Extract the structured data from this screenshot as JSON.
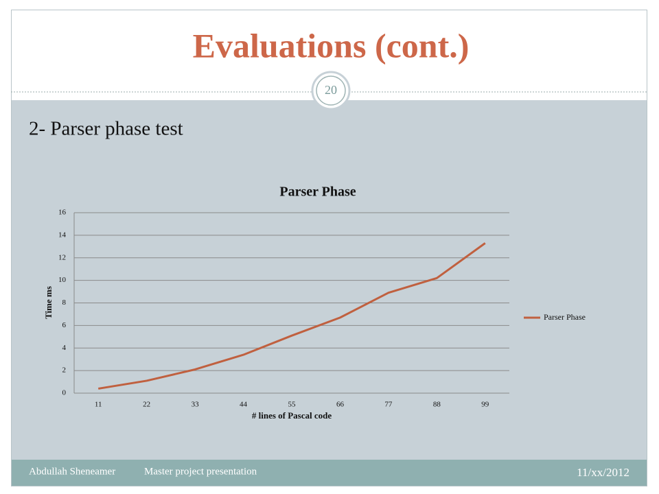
{
  "slide": {
    "title": "Evaluations (cont.)",
    "page_number": "20",
    "subtitle": "2- Parser phase test",
    "footer_author": "Abdullah Sheneamer",
    "footer_text": "Master project presentation",
    "footer_date": "11/xx/2012"
  },
  "chart_data": {
    "type": "line",
    "title": "Parser Phase",
    "x_label": "# lines of Pascal code",
    "y_label": "Time ms",
    "categories": [
      "11",
      "22",
      "33",
      "44",
      "55",
      "66",
      "77",
      "88",
      "99"
    ],
    "series": [
      {
        "name": "Parser Phase",
        "color": "#c0603f",
        "values": [
          0.4,
          1.1,
          2.1,
          3.4,
          5.1,
          6.7,
          8.9,
          10.2,
          13.3
        ]
      }
    ],
    "ylim": [
      0,
      16
    ],
    "yticks": [
      0,
      2,
      4,
      6,
      8,
      10,
      12,
      14,
      16
    ],
    "grid": true,
    "legend": "right"
  }
}
